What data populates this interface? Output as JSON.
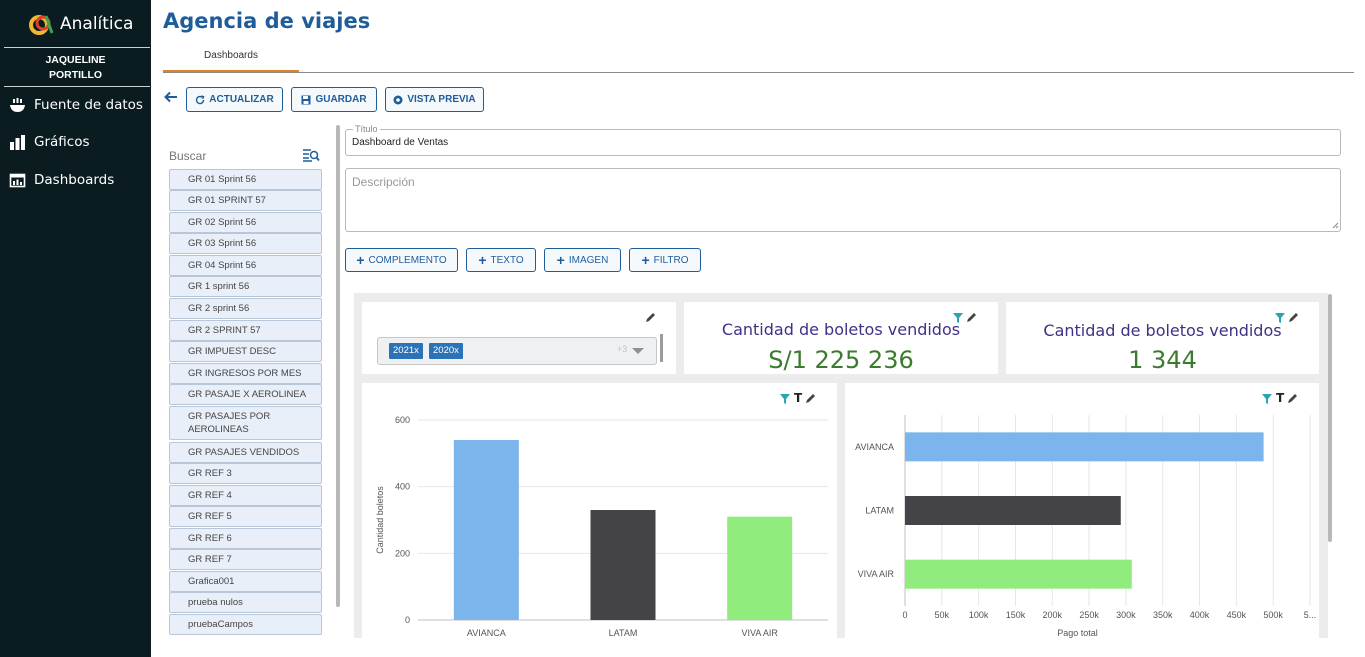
{
  "sidebar": {
    "brand": "Analítica",
    "user_line1": "JAQUELINE",
    "user_line2": "PORTILLO",
    "items": [
      {
        "label": "Fuente de datos",
        "icon": "database-bowl-icon"
      },
      {
        "label": "Gráficos",
        "icon": "bar-chart-icon"
      },
      {
        "label": "Dashboards",
        "icon": "dashboard-icon"
      }
    ]
  },
  "header": {
    "title": "Agencia de viajes",
    "tab": "Dashboards",
    "accent": "#e4822a",
    "title_color": "#1f5d9a"
  },
  "toolbar": {
    "back_icon": "arrow-left-icon",
    "refresh_label": "ACTUALIZAR",
    "save_label": "GUARDAR",
    "preview_label": "VISTA PREVIA"
  },
  "left_list": {
    "search_label": "Buscar",
    "items": [
      "GR 01 Sprint 56",
      "GR 01 SPRINT 57",
      "GR 02 Sprint 56",
      "GR 03 Sprint 56",
      "GR 04 Sprint 56",
      "GR 1 sprint 56",
      "GR 2 sprint 56",
      "GR 2 SPRINT 57",
      "GR IMPUEST DESC",
      "GR INGRESOS POR MES",
      "GR PASAJE X AEROLINEA",
      "GR PASAJES POR AEROLINEAS",
      "GR PASAJES VENDIDOS",
      "GR REF 3",
      "GR REF 4",
      "GR REF 5",
      "GR REF 6",
      "GR REF 7",
      "Grafica001",
      "prueba nulos",
      "pruebaCampos"
    ]
  },
  "form": {
    "title_legend": "Título",
    "title_value": "Dashboard de Ventas",
    "description_placeholder": "Descripción",
    "add_complement": "COMPLEMENTO",
    "add_text": "TEXTO",
    "add_image": "IMAGEN",
    "add_filter": "FILTRO"
  },
  "dashboard": {
    "filter": {
      "chips": [
        "2021",
        "2020"
      ],
      "chip_remove": "x",
      "extra": "+3"
    },
    "kpi1": {
      "title": "Cantidad de boletos vendidos",
      "value": "S/1 225 236"
    },
    "kpi2": {
      "title": "Cantidad de boletos vendidos",
      "value": "1 344"
    },
    "text_toggle": "T"
  },
  "chart_data": [
    {
      "type": "bar",
      "orientation": "vertical",
      "categories": [
        "AVIANCA",
        "LATAM",
        "VIVA AIR"
      ],
      "values": [
        540,
        330,
        310
      ],
      "colors": [
        "#7cb5ec",
        "#434348",
        "#90ed7d"
      ],
      "ylabel": "Cantidad boletos",
      "ylim": [
        0,
        600
      ],
      "yticks": [
        0,
        200,
        400,
        600
      ],
      "grid": true
    },
    {
      "type": "bar",
      "orientation": "horizontal",
      "categories": [
        "AVIANCA",
        "LATAM",
        "VIVA AIR"
      ],
      "values": [
        487000,
        293000,
        308000
      ],
      "colors": [
        "#7cb5ec",
        "#434348",
        "#90ed7d"
      ],
      "xlabel": "Pago total",
      "xticks": [
        "0",
        "50k",
        "100k",
        "150k",
        "200k",
        "250k",
        "300k",
        "350k",
        "400k",
        "450k",
        "500k",
        "5..."
      ],
      "xlim": [
        0,
        550000
      ],
      "grid": true
    }
  ]
}
